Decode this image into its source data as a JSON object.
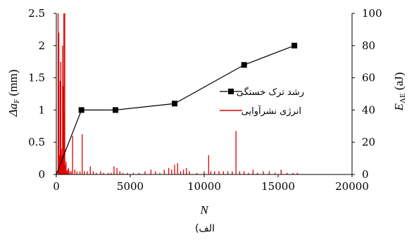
{
  "chart_data": {
    "type": "line",
    "caption": "(الف",
    "x_axis": {
      "label": "N",
      "range": [
        0,
        20000
      ],
      "ticks": [
        0,
        5000,
        10000,
        15000,
        20000
      ]
    },
    "y_left": {
      "label_prefix": "Δa",
      "label_sub": "F",
      "label_unit": " (mm)",
      "range": [
        0,
        2.5
      ],
      "ticks": [
        "0",
        "0.5",
        "1",
        "1.5",
        "2",
        "2.5"
      ]
    },
    "y_right": {
      "label_prefix": "E",
      "label_sub": "AE",
      "label_unit": " (aJ)",
      "range": [
        0,
        100
      ],
      "ticks": [
        "0",
        "20",
        "40",
        "60",
        "80",
        "100"
      ]
    },
    "legend_placement": "right",
    "grid": false,
    "series": [
      {
        "name": "رشد ترک خستگی",
        "axis": "left",
        "style": "line-square",
        "color": "#000000",
        "x": [
          0,
          1700,
          4000,
          8000,
          12700,
          16100
        ],
        "y": [
          0,
          1.0,
          1.0,
          1.1,
          1.7,
          2.0
        ]
      },
      {
        "name": "انرژی نشرآوایی",
        "axis": "right",
        "style": "spikes",
        "color": "#e00000",
        "x": [
          120,
          170,
          220,
          260,
          300,
          340,
          380,
          420,
          450,
          480,
          510,
          540,
          570,
          600,
          630,
          660,
          700,
          760,
          820,
          900,
          1000,
          1100,
          1250,
          1400,
          1600,
          1750,
          1900,
          2100,
          2300,
          2500,
          2700,
          3000,
          3200,
          3500,
          3700,
          3900,
          4100,
          4300,
          4500,
          4800,
          5200,
          5600,
          6000,
          6400,
          6700,
          7000,
          7300,
          7600,
          7800,
          8000,
          8200,
          8400,
          8600,
          8800,
          9000,
          9500,
          10000,
          10300,
          10450,
          10700,
          11000,
          11300,
          11600,
          11900,
          12150,
          12400,
          12700,
          13000,
          13300,
          13600,
          14000,
          14400,
          14800,
          15200,
          15600,
          16000,
          16300
        ],
        "y": [
          100,
          88,
          12,
          58,
          70,
          16,
          12,
          80,
          20,
          55,
          100,
          40,
          100,
          4,
          6,
          8,
          2,
          3,
          4,
          2,
          2,
          24,
          3,
          2,
          2,
          25,
          2,
          2,
          5,
          2,
          1,
          2,
          1,
          1,
          1,
          5,
          4,
          2,
          1,
          1,
          1,
          1,
          2,
          3,
          2,
          1,
          3,
          4,
          3,
          6,
          7,
          2,
          3,
          4,
          2,
          1,
          2,
          12,
          2,
          2,
          2,
          2,
          2,
          2,
          27,
          2,
          2,
          1,
          3,
          1,
          2,
          2,
          1,
          3,
          1,
          1,
          1
        ]
      }
    ]
  }
}
